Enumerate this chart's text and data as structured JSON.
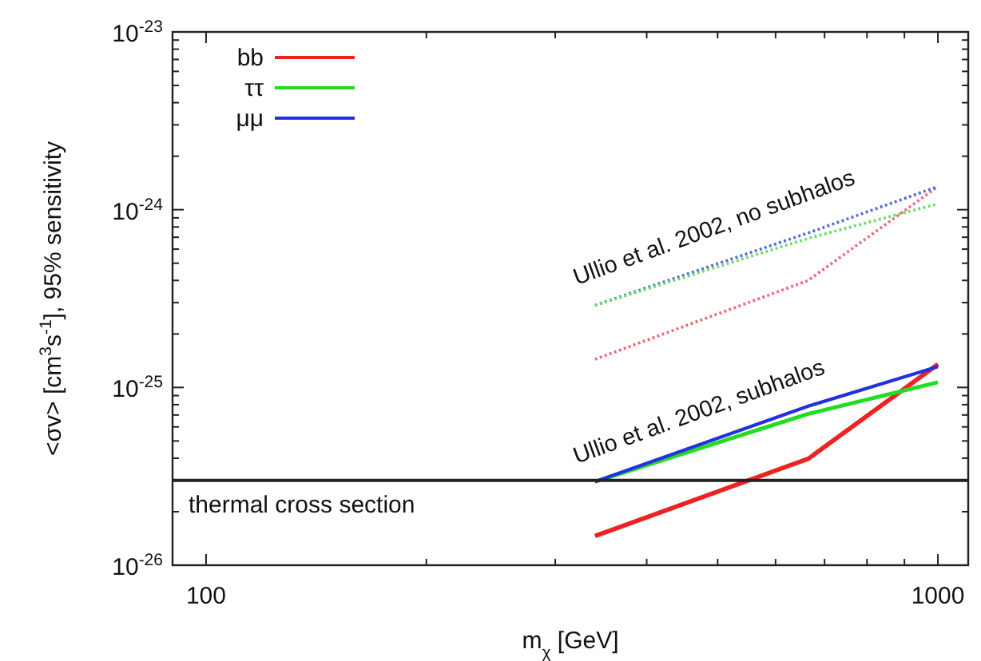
{
  "chart_data": {
    "type": "line",
    "xlabel": "m$_{χ}$ [GeV]",
    "ylabel": "<σv> [cm$^{3}$s$^{-1}$], 95% sensitivity",
    "log": "xy",
    "xlim": [
      90,
      1100
    ],
    "ylim": [
      1e-26,
      1e-23
    ],
    "xticks": [
      100,
      {
        "value": 200,
        "label": null
      },
      {
        "value": 300,
        "label": null
      },
      {
        "value": 400,
        "label": null
      },
      {
        "value": 500,
        "label": null
      },
      {
        "value": 600,
        "label": null
      },
      {
        "value": 700,
        "label": null
      },
      {
        "value": 800,
        "label": null
      },
      {
        "value": 900,
        "label": null
      },
      1000
    ],
    "yticks": [
      {
        "value": 1e-26,
        "label": "10$^{-26}$"
      },
      {
        "value": 2e-26,
        "label": null
      },
      {
        "value": 3e-26,
        "label": null
      },
      {
        "value": 4e-26,
        "label": null
      },
      {
        "value": 5e-26,
        "label": null
      },
      {
        "value": 6e-26,
        "label": null
      },
      {
        "value": 7e-26,
        "label": null
      },
      {
        "value": 8e-26,
        "label": null
      },
      {
        "value": 9e-26,
        "label": null
      },
      {
        "value": 1e-25,
        "label": "10$^{-25}$"
      },
      {
        "value": 2e-25,
        "label": null
      },
      {
        "value": 3e-25,
        "label": null
      },
      {
        "value": 4e-25,
        "label": null
      },
      {
        "value": 5e-25,
        "label": null
      },
      {
        "value": 6e-25,
        "label": null
      },
      {
        "value": 7e-25,
        "label": null
      },
      {
        "value": 8e-25,
        "label": null
      },
      {
        "value": 9e-25,
        "label": null
      },
      {
        "value": 1e-24,
        "label": "10$^{-24}$"
      },
      {
        "value": 2e-24,
        "label": null
      },
      {
        "value": 3e-24,
        "label": null
      },
      {
        "value": 4e-24,
        "label": null
      },
      {
        "value": 5e-24,
        "label": null
      },
      {
        "value": 6e-24,
        "label": null
      },
      {
        "value": 7e-24,
        "label": null
      },
      {
        "value": 8e-24,
        "label": null
      },
      {
        "value": 9e-24,
        "label": null
      },
      {
        "value": 1e-23,
        "label": "10$^{-23}$"
      }
    ],
    "x": [
      340,
      665,
      1000
    ],
    "legend": "top left",
    "grid": false,
    "series": [
      {
        "name": "bb",
        "color": "#ee2222",
        "values": [
          1.46e-26,
          3.97e-26,
          1.35e-25
        ],
        "line_style": "solid"
      },
      {
        "name": "ττ",
        "color": "#22dd22",
        "values": [
          2.95e-26,
          7.1e-26,
          1.07e-25
        ],
        "line_style": "solid"
      },
      {
        "name": "μμ",
        "color": "#2233dd",
        "values": [
          2.95e-26,
          7.85e-26,
          1.31e-25
        ],
        "line_style": "solid"
      },
      {
        "color": "#ee6677",
        "values": [
          1.44e-25,
          4e-25,
          1.35e-24
        ],
        "line_style": "dotted"
      },
      {
        "color": "#5566dd",
        "values": [
          2.9e-25,
          7.4e-25,
          1.35e-24
        ],
        "line_style": "dotted"
      },
      {
        "color": "#66dd66",
        "values": [
          2.9e-25,
          6.9e-25,
          1.08e-24
        ],
        "line_style": "dotted"
      }
    ],
    "ref_lines": [
      {
        "axis": "y",
        "value": 3e-26,
        "label": "thermal cross section",
        "color": "#222222"
      }
    ],
    "annotations": [
      "Ullio et al. 2002, no subhalos",
      "Ullio et al. 2002, subhalos"
    ]
  }
}
